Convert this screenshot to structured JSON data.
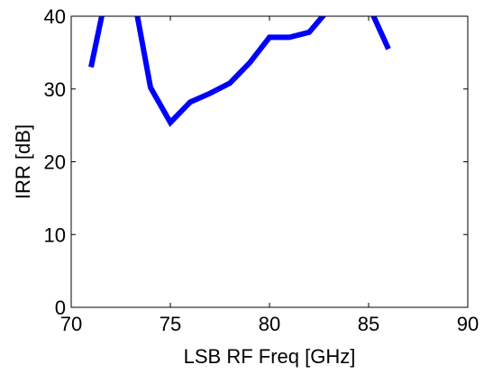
{
  "chart_data": {
    "type": "line",
    "title": "",
    "xlabel": "LSB RF Freq [GHz]",
    "ylabel": "IRR [dB]",
    "xlim": [
      70,
      90
    ],
    "ylim": [
      0,
      40
    ],
    "xticks": [
      70,
      75,
      80,
      85,
      90
    ],
    "yticks": [
      0,
      10,
      20,
      30,
      40
    ],
    "grid": false,
    "legend": "none",
    "series": [
      {
        "color": "#0000ff",
        "x": [
          71,
          72,
          73,
          74,
          75,
          76,
          77,
          78,
          79,
          80,
          81,
          82,
          83,
          84,
          85,
          86
        ],
        "y": [
          33,
          46,
          45,
          30.2,
          25.4,
          28.2,
          29.4,
          30.8,
          33.6,
          37.1,
          37.1,
          37.8,
          41,
          44,
          41.5,
          35.5
        ]
      }
    ]
  }
}
